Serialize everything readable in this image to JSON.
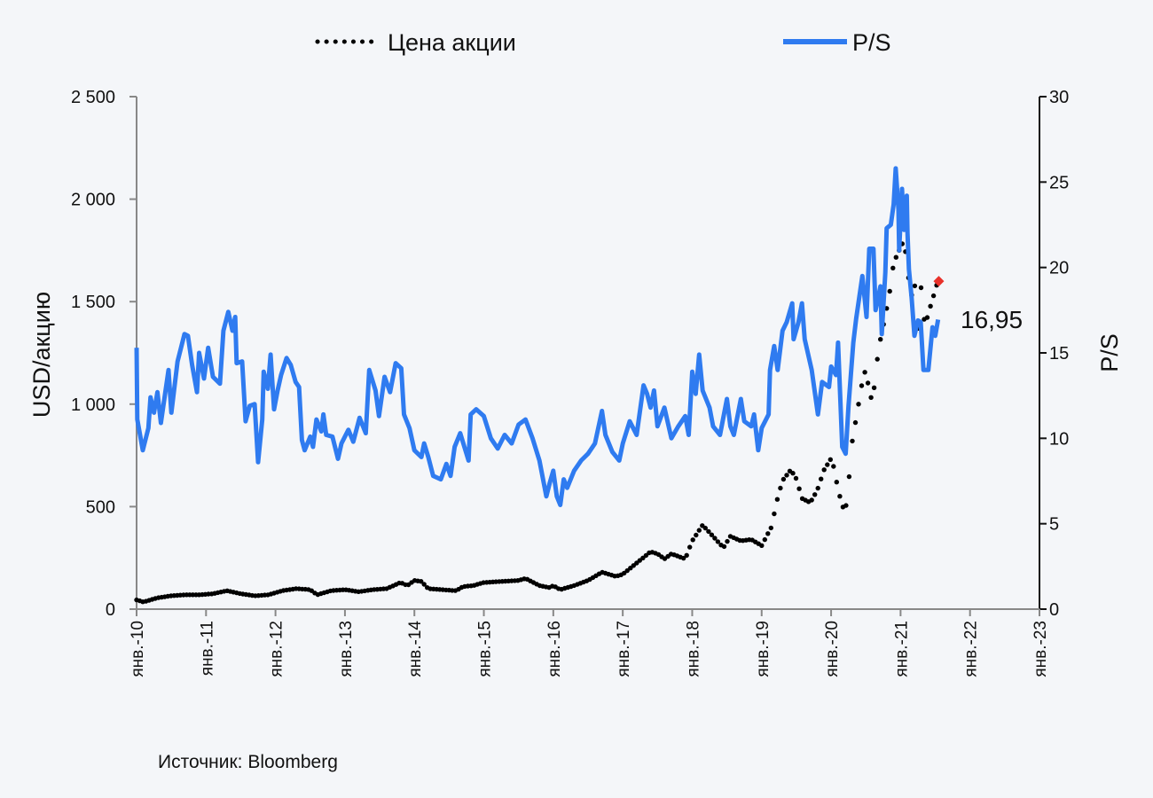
{
  "chart_data": {
    "type": "line",
    "legend": {
      "price_label": "Цена акции",
      "ps_label": "P/S",
      "placement": "top"
    },
    "ylabel_left": "USD/акцию",
    "ylabel_right": "P/S",
    "ylim_left": [
      0,
      2500
    ],
    "ylim_right": [
      0,
      30
    ],
    "yticks_left": [
      "0",
      "500",
      "1 000",
      "1 500",
      "2 000",
      "2 500"
    ],
    "yticks_left_values": [
      0,
      500,
      1000,
      1500,
      2000,
      2500
    ],
    "yticks_right": [
      "0",
      "5",
      "10",
      "15",
      "20",
      "25",
      "30"
    ],
    "yticks_right_values": [
      0,
      5,
      10,
      15,
      20,
      25,
      30
    ],
    "xlim": [
      2010,
      2023
    ],
    "xticks": [
      "янв.-10",
      "янв.-11",
      "янв.-12",
      "янв.-13",
      "янв.-14",
      "янв.-15",
      "янв.-16",
      "янв.-17",
      "янв.-18",
      "янв.-19",
      "янв.-20",
      "янв.-21",
      "янв.-22",
      "янв.-23"
    ],
    "last_value_label": "16,95",
    "last_price_marker": {
      "x": 2021.55,
      "y": 1600,
      "color": "#e8312a"
    },
    "colors": {
      "price": "#000000",
      "ps": "#2f7bf0",
      "marker": "#e8312a"
    },
    "series": [
      {
        "name": "Цена акции",
        "axis": "left",
        "style": "dotted",
        "x": [
          2010.0,
          2010.1,
          2010.3,
          2010.5,
          2010.7,
          2010.9,
          2011.1,
          2011.3,
          2011.5,
          2011.7,
          2011.9,
          2012.1,
          2012.3,
          2012.5,
          2012.6,
          2012.8,
          2013.0,
          2013.2,
          2013.4,
          2013.6,
          2013.8,
          2013.9,
          2014.0,
          2014.1,
          2014.2,
          2014.4,
          2014.6,
          2014.7,
          2014.85,
          2015.0,
          2015.5,
          2015.6,
          2015.8,
          2015.95,
          2016.0,
          2016.1,
          2016.3,
          2016.5,
          2016.7,
          2016.9,
          2017.0,
          2017.2,
          2017.4,
          2017.5,
          2017.6,
          2017.7,
          2017.9,
          2018.0,
          2018.15,
          2018.3,
          2018.45,
          2018.55,
          2018.7,
          2018.85,
          2019.0,
          2019.1,
          2019.15,
          2019.2,
          2019.3,
          2019.42,
          2019.5,
          2019.58,
          2019.7,
          2019.8,
          2019.9,
          2020.0,
          2020.05,
          2020.1,
          2020.2,
          2020.25,
          2020.3,
          2020.38,
          2020.45,
          2020.5,
          2020.55,
          2020.6,
          2020.65,
          2020.7,
          2020.78,
          2020.85,
          2020.9,
          2020.98,
          2021.05,
          2021.1,
          2021.15,
          2021.2,
          2021.25,
          2021.3,
          2021.35,
          2021.4,
          2021.45,
          2021.52,
          2021.55
        ],
        "y": [
          45,
          35,
          55,
          65,
          70,
          70,
          75,
          90,
          75,
          65,
          70,
          90,
          100,
          95,
          70,
          90,
          95,
          85,
          95,
          100,
          130,
          115,
          140,
          135,
          100,
          95,
          90,
          110,
          115,
          130,
          140,
          150,
          115,
          105,
          115,
          95,
          115,
          140,
          180,
          160,
          170,
          225,
          280,
          270,
          245,
          270,
          245,
          333,
          410,
          355,
          300,
          355,
          333,
          340,
          310,
          375,
          405,
          505,
          627,
          680,
          635,
          540,
          520,
          580,
          680,
          735,
          680,
          580,
          463,
          605,
          810,
          970,
          1110,
          1175,
          1055,
          1010,
          1185,
          1300,
          1430,
          1560,
          1690,
          1750,
          1800,
          1660,
          1515,
          1600,
          1370,
          1590,
          1370,
          1445,
          1500,
          1580,
          1600
        ]
      },
      {
        "name": "P/S",
        "axis": "right",
        "style": "solid",
        "x": [
          2010.0,
          2010.01,
          2010.09,
          2010.17,
          2010.2,
          2010.25,
          2010.3,
          2010.35,
          2010.46,
          2010.5,
          2010.59,
          2010.69,
          2010.74,
          2010.8,
          2010.87,
          2010.9,
          2010.97,
          2011.03,
          2011.1,
          2011.2,
          2011.25,
          2011.32,
          2011.38,
          2011.42,
          2011.44,
          2011.52,
          2011.57,
          2011.63,
          2011.7,
          2011.75,
          2011.81,
          2011.83,
          2011.89,
          2011.93,
          2011.98,
          2012.03,
          2012.08,
          2012.16,
          2012.22,
          2012.29,
          2012.34,
          2012.38,
          2012.42,
          2012.5,
          2012.54,
          2012.59,
          2012.66,
          2012.69,
          2012.73,
          2012.82,
          2012.9,
          2012.95,
          2013.05,
          2013.12,
          2013.21,
          2013.3,
          2013.35,
          2013.44,
          2013.49,
          2013.57,
          2013.65,
          2013.73,
          2013.81,
          2013.85,
          2013.93,
          2014.0,
          2014.1,
          2014.14,
          2014.2,
          2014.27,
          2014.38,
          2014.46,
          2014.52,
          2014.58,
          2014.66,
          2014.78,
          2014.81,
          2014.89,
          2015.0,
          2015.1,
          2015.2,
          2015.3,
          2015.4,
          2015.5,
          2015.6,
          2015.7,
          2015.8,
          2015.9,
          2015.95,
          2016.0,
          2016.05,
          2016.1,
          2016.15,
          2016.2,
          2016.3,
          2016.4,
          2016.5,
          2016.6,
          2016.7,
          2016.75,
          2016.85,
          2016.95,
          2017.0,
          2017.1,
          2017.2,
          2017.3,
          2017.35,
          2017.4,
          2017.45,
          2017.5,
          2017.6,
          2017.7,
          2017.8,
          2017.9,
          2017.95,
          2018.0,
          2018.05,
          2018.1,
          2018.15,
          2018.25,
          2018.3,
          2018.4,
          2018.5,
          2018.55,
          2018.6,
          2018.7,
          2018.75,
          2018.85,
          2018.89,
          2018.95,
          2019.0,
          2019.1,
          2019.12,
          2019.18,
          2019.23,
          2019.3,
          2019.36,
          2019.44,
          2019.46,
          2019.53,
          2019.58,
          2019.62,
          2019.72,
          2019.81,
          2019.87,
          2019.97,
          2020.0,
          2020.07,
          2020.1,
          2020.16,
          2020.21,
          2020.25,
          2020.32,
          2020.36,
          2020.45,
          2020.51,
          2020.55,
          2020.61,
          2020.64,
          2020.71,
          2020.73,
          2020.78,
          2020.8,
          2020.86,
          2020.9,
          2020.93,
          2020.97,
          2020.98,
          2021.02,
          2021.05,
          2021.09,
          2021.1,
          2021.12,
          2021.16,
          2021.2,
          2021.25,
          2021.29,
          2021.33,
          2021.4,
          2021.46,
          2021.5,
          2021.54
        ],
        "y": [
          15.3,
          11.1,
          9.3,
          10.6,
          12.4,
          11.5,
          12.7,
          10.9,
          14.0,
          11.5,
          14.5,
          16.1,
          16.0,
          14.3,
          12.7,
          15.0,
          13.5,
          15.3,
          13.6,
          13.2,
          16.3,
          17.4,
          16.3,
          17.1,
          14.4,
          14.5,
          11.0,
          11.9,
          12.0,
          8.6,
          11.1,
          13.9,
          12.9,
          14.9,
          11.7,
          12.8,
          13.7,
          14.7,
          14.3,
          13.3,
          13.0,
          9.9,
          9.3,
          10.1,
          9.5,
          11.1,
          10.4,
          11.4,
          10.2,
          10.1,
          8.8,
          9.7,
          10.5,
          9.8,
          11.2,
          10.3,
          14.0,
          12.8,
          11.3,
          13.6,
          12.7,
          14.4,
          14.1,
          11.4,
          10.6,
          9.3,
          8.9,
          9.7,
          8.9,
          7.8,
          7.6,
          8.5,
          7.8,
          9.5,
          10.3,
          8.7,
          11.4,
          11.7,
          11.3,
          10.0,
          9.4,
          10.2,
          9.7,
          10.8,
          11.1,
          10.0,
          8.7,
          6.6,
          7.4,
          8.1,
          6.6,
          6.1,
          7.6,
          7.1,
          8.1,
          8.7,
          9.1,
          9.7,
          11.6,
          10.2,
          9.2,
          8.7,
          9.7,
          11.0,
          10.2,
          13.1,
          12.6,
          11.8,
          12.8,
          10.7,
          11.8,
          10.0,
          10.7,
          11.3,
          10.2,
          13.9,
          12.6,
          14.9,
          12.8,
          11.8,
          10.7,
          10.2,
          12.3,
          10.7,
          10.2,
          12.3,
          11.0,
          10.7,
          11.4,
          9.3,
          10.6,
          11.4,
          14.0,
          15.4,
          14.0,
          16.3,
          16.8,
          17.9,
          15.8,
          16.8,
          17.9,
          15.8,
          14.0,
          11.4,
          13.3,
          13.0,
          14.2,
          13.7,
          15.6,
          9.5,
          9.1,
          11.9,
          15.6,
          17.0,
          19.5,
          17.1,
          21.1,
          21.1,
          17.5,
          18.9,
          16.1,
          19.7,
          22.3,
          22.5,
          23.7,
          25.8,
          23.4,
          21.0,
          24.6,
          22.2,
          24.2,
          22.0,
          19.9,
          18.2,
          16.0,
          16.9,
          16.8,
          14.0,
          14.0,
          16.5,
          16.0,
          16.95
        ]
      }
    ]
  },
  "source": "Источник: Bloomberg"
}
